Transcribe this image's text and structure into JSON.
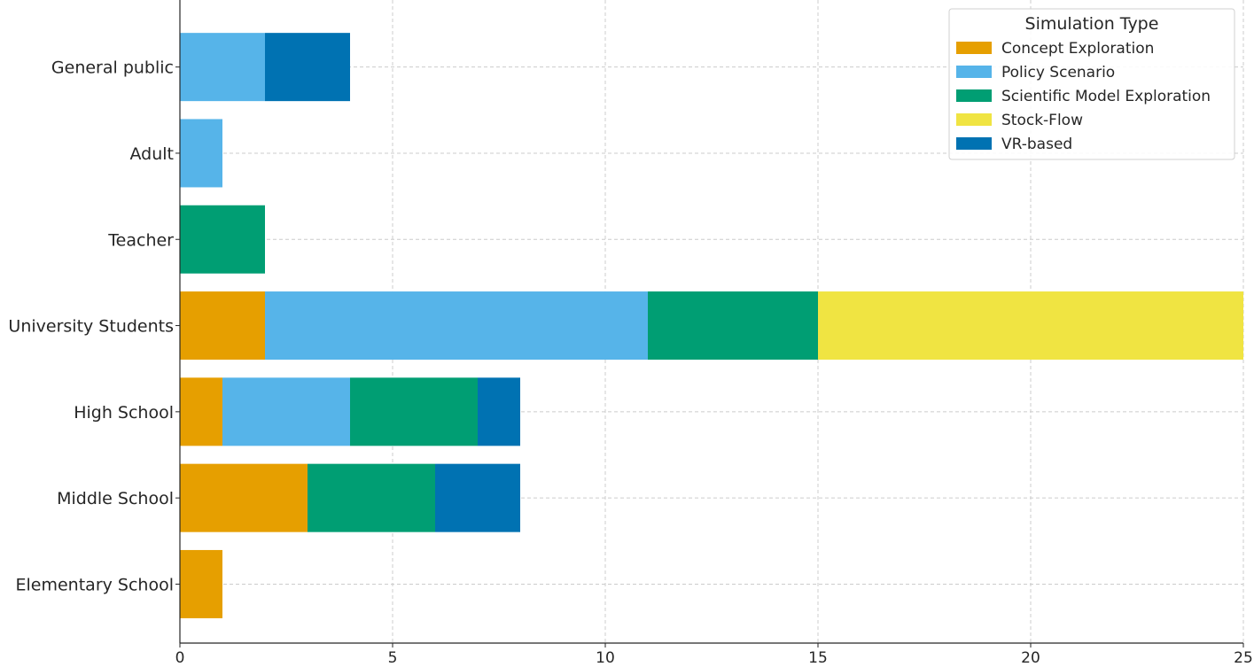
{
  "chart_data": {
    "type": "bar",
    "orientation": "horizontal",
    "stacked": true,
    "categories": [
      "Elementary School",
      "Middle School",
      "High School",
      "University Students",
      "Teacher",
      "Adult",
      "General public"
    ],
    "series": [
      {
        "name": "Concept Exploration",
        "color": "#E69F00",
        "values": [
          1,
          3,
          1,
          2,
          0,
          0,
          0
        ]
      },
      {
        "name": "Policy Scenario",
        "color": "#56B4E9",
        "values": [
          0,
          0,
          3,
          9,
          0,
          1,
          2
        ]
      },
      {
        "name": "Scientific Model Exploration",
        "color": "#009E73",
        "values": [
          0,
          3,
          3,
          4,
          2,
          0,
          0
        ]
      },
      {
        "name": "Stock-Flow",
        "color": "#F0E442",
        "values": [
          0,
          0,
          0,
          10,
          0,
          0,
          0
        ]
      },
      {
        "name": "VR-based",
        "color": "#0072B2",
        "values": [
          0,
          2,
          1,
          0,
          0,
          0,
          2
        ]
      }
    ],
    "xticks": [
      0,
      5,
      10,
      15,
      20,
      25
    ],
    "xlim": [
      0,
      25
    ],
    "grid": true,
    "legend": {
      "title": "Simulation Type",
      "position": "top-right"
    },
    "title": "",
    "xlabel": "",
    "ylabel": ""
  }
}
